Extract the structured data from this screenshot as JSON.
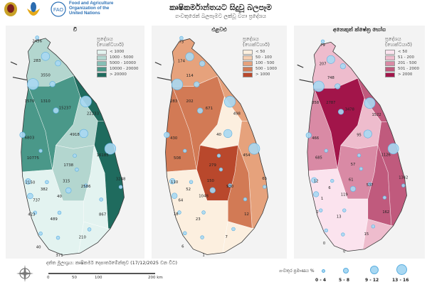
{
  "header": {
    "org_name": "Food and Agriculture Organization of the United Nations",
    "org_lines": [
      "Food and Agriculture",
      "Organization of the",
      "United Nations"
    ],
    "title": "කෘෂිකර්මාන්තයට සිදුවූ බලපෑම",
    "subtitle": "ගංවතුරෙන් බලපෑමට ලක්වූ වගා ප්‍රදේශය"
  },
  "colors": {
    "bubble_fill": "#a9d8f2",
    "bubble_stroke": "#5aaee0"
  },
  "maps": [
    {
      "title": "වී",
      "legend_title": [
        "ප්‍රදේශය",
        "(හෙක්ටයාර්)"
      ],
      "classes": [
        "< 1000",
        "1000 - 5000",
        "5000 - 10000",
        "10000 - 20000",
        "> 20000"
      ],
      "palette": [
        "#e3f3f0",
        "#b3d6cf",
        "#86bfb6",
        "#4a9889",
        "#1f6b5e"
      ],
      "region_classes": [
        1,
        3,
        3,
        4,
        1,
        4,
        1,
        0,
        0,
        0
      ],
      "labels": [
        "2456",
        "283",
        "3550",
        "1570",
        "1310",
        "15237",
        "22233",
        "4918",
        "6803",
        "16185",
        "10775",
        "1738",
        "2150",
        "315",
        "382",
        "40",
        "2586",
        "3248",
        "737",
        "423",
        "867",
        "489",
        "210",
        "40",
        "371"
      ]
    },
    {
      "title": "එළවළු",
      "legend_title": [
        "ප්‍රදේශය",
        "(හෙක්ටයාර්)"
      ],
      "classes": [
        "< 50",
        "50 - 100",
        "100 - 500",
        "500 - 1000",
        "> 1000"
      ],
      "palette": [
        "#fcefdf",
        "#f4cdb0",
        "#e6a27c",
        "#d27a55",
        "#b9482c"
      ],
      "region_classes": [
        2,
        3,
        3,
        2,
        0,
        2,
        4,
        3,
        0,
        0
      ],
      "labels": [
        "73",
        "174",
        "114",
        "283",
        "202",
        "671",
        "498",
        "40",
        "430",
        "454",
        "508",
        "279",
        "110",
        "150",
        "52",
        "1048",
        "930",
        "65",
        "64",
        "18",
        "12",
        "23",
        "7",
        "6",
        "1"
      ]
    },
    {
      "title": "අනෙකුත් ක්ෂේත්‍ර භෝග",
      "legend_title": [
        "ප්‍රදේශය",
        "(හෙක්ටයාර්)"
      ],
      "classes": [
        "< 50",
        "51 - 200",
        "201 - 500",
        "501 - 2000",
        "> 2000"
      ],
      "palette": [
        "#fbe3ee",
        "#eebccd",
        "#d98aa5",
        "#c05a7d",
        "#a2154a"
      ],
      "region_classes": [
        1,
        2,
        4,
        3,
        1,
        3,
        2,
        3,
        0,
        1
      ],
      "labels": [
        "79",
        "207",
        "748",
        "858",
        "2787",
        "3478",
        "1522",
        "95",
        "466",
        "1126",
        "685",
        "57",
        "12",
        "61",
        "6",
        "119",
        "537",
        "1342",
        "1",
        "2",
        "162",
        "13",
        "15",
        "0",
        "0"
      ]
    }
  ],
  "footer": {
    "source": "දත්ත මූලාශ්‍රය: කෘෂිකර්ම දෙපාර්තමේන්තුව (17/12/2025 වන විට)",
    "scale_labels": [
      "0",
      "50",
      "100",
      "200 km"
    ],
    "bubble_legend_title": "ගංවතුර ප්‍රමාණය %",
    "bubble_classes": [
      "0 - 4",
      "5 - 8",
      "9 - 12",
      "13 - 16"
    ]
  },
  "bubbles_class": [
    1,
    3,
    2,
    4,
    2,
    2,
    4,
    3,
    2,
    4,
    1,
    1,
    1,
    2,
    1,
    2,
    1,
    1,
    2,
    1,
    1,
    1,
    1,
    1,
    1
  ]
}
